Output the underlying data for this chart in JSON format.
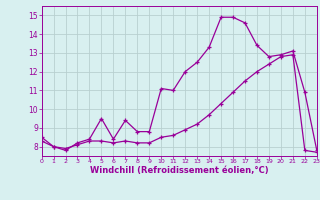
{
  "line1_x": [
    0,
    1,
    2,
    3,
    4,
    5,
    6,
    7,
    8,
    9,
    10,
    11,
    12,
    13,
    14,
    15,
    16,
    17,
    18,
    19,
    20,
    21,
    22,
    23
  ],
  "line1_y": [
    8.5,
    8.0,
    7.8,
    8.2,
    8.4,
    9.5,
    8.4,
    9.4,
    8.8,
    8.8,
    11.1,
    11.0,
    12.0,
    12.5,
    13.3,
    14.9,
    14.9,
    14.6,
    13.4,
    12.8,
    12.9,
    13.1,
    10.9,
    7.8
  ],
  "line2_x": [
    0,
    1,
    2,
    3,
    4,
    5,
    6,
    7,
    8,
    9,
    10,
    11,
    12,
    13,
    14,
    15,
    16,
    17,
    18,
    19,
    20,
    21,
    22,
    23
  ],
  "line2_y": [
    8.3,
    8.0,
    7.9,
    8.1,
    8.3,
    8.3,
    8.2,
    8.3,
    8.2,
    8.2,
    8.5,
    8.6,
    8.9,
    9.2,
    9.7,
    10.3,
    10.9,
    11.5,
    12.0,
    12.4,
    12.8,
    12.9,
    7.8,
    7.7
  ],
  "line_color": "#990099",
  "bg_color": "#d8f0f0",
  "grid_color": "#b8d0d0",
  "xlabel": "Windchill (Refroidissement éolien,°C)",
  "xlim": [
    0,
    23
  ],
  "ylim": [
    7.5,
    15.5
  ],
  "yticks": [
    8,
    9,
    10,
    11,
    12,
    13,
    14,
    15
  ],
  "xticks": [
    0,
    1,
    2,
    3,
    4,
    5,
    6,
    7,
    8,
    9,
    10,
    11,
    12,
    13,
    14,
    15,
    16,
    17,
    18,
    19,
    20,
    21,
    22,
    23
  ]
}
